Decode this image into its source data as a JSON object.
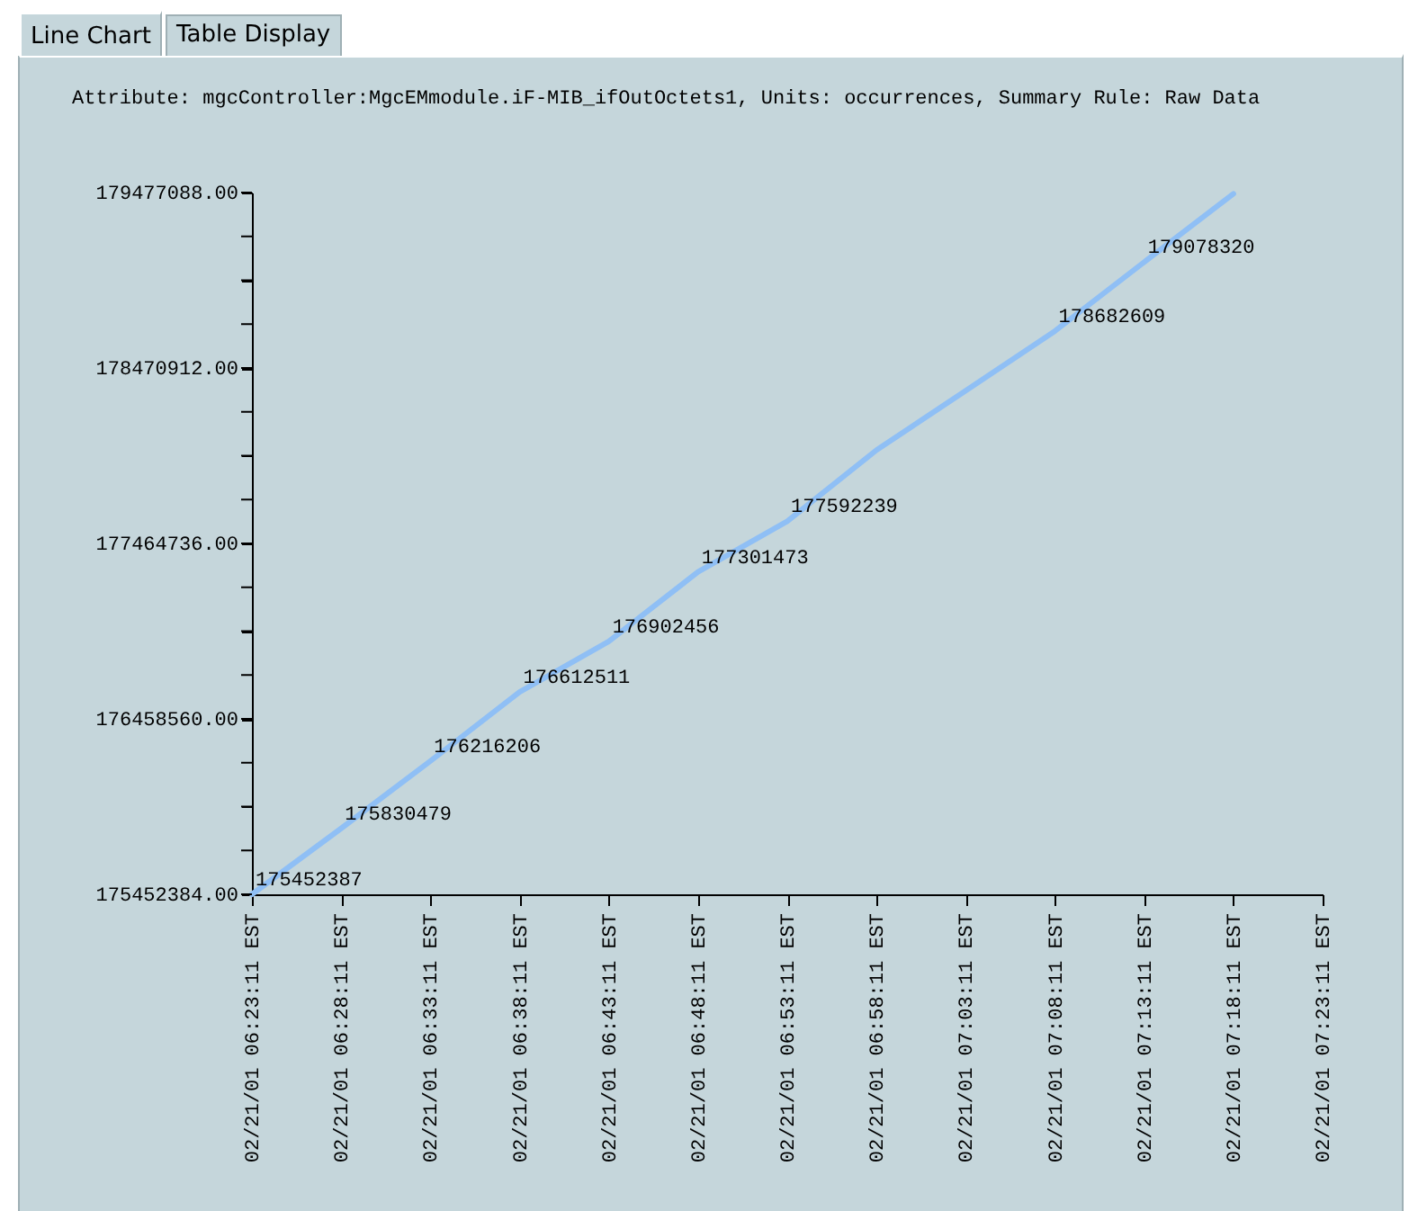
{
  "chart_data": {
    "type": "line",
    "annotations": [
      "Line Chart",
      "Table Display"
    ],
    "categories": [
      "02/21/01 06:23:11 EST",
      "02/21/01 06:28:11 EST",
      "02/21/01 06:33:11 EST",
      "02/21/01 06:38:11 EST",
      "02/21/01 06:43:11 EST",
      "02/21/01 06:48:11 EST",
      "02/21/01 06:53:11 EST",
      "02/21/01 06:58:11 EST",
      "02/21/01 07:03:11 EST",
      "02/21/01 07:08:11 EST",
      "02/21/01 07:13:11 EST",
      "02/21/01 07:18:11 EST",
      "02/21/01 07:23:11 EST"
    ],
    "series": [
      {
        "name": "Attribute: mgcController:MgcEMmodule.iF-MIB_ifOutOctets1, Units: occurrences, Summary Rule: Raw Data",
        "color": "#8fbff5",
        "values": [
          175452387,
          175830479,
          176216206,
          176612511,
          176902456,
          177301473,
          177592239,
          178000000,
          178340000,
          178682609,
          179078320,
          179470000,
          null
        ],
        "value_labels": [
          "175452387",
          "175830479",
          "176216206",
          "176612511",
          "176902456",
          "177301473",
          "177592239",
          null,
          null,
          "178682609",
          "179078320",
          null,
          null
        ]
      }
    ],
    "legend": "top left",
    "ylim": [
      175452384,
      179477088
    ],
    "yticks": [
      {
        "value": 175452384,
        "label": "175452384.00"
      },
      {
        "value": 175703928,
        "label": null
      },
      {
        "value": 175955472,
        "label": null
      },
      {
        "value": 176207016,
        "label": null
      },
      {
        "value": 176458560,
        "label": "176458560.00"
      },
      {
        "value": 176710104,
        "label": null
      },
      {
        "value": 176961648,
        "label": null
      },
      {
        "value": 177213192,
        "label": null
      },
      {
        "value": 177464736,
        "label": "177464736.00"
      },
      {
        "value": 177716280,
        "label": null
      },
      {
        "value": 177967824,
        "label": null
      },
      {
        "value": 178219368,
        "label": null
      },
      {
        "value": 178470912,
        "label": "178470912.00"
      },
      {
        "value": 178722456,
        "label": null
      },
      {
        "value": 178974000,
        "label": null
      },
      {
        "value": 179225544,
        "label": null
      },
      {
        "value": 179477088,
        "label": "179477088.00"
      }
    ]
  }
}
